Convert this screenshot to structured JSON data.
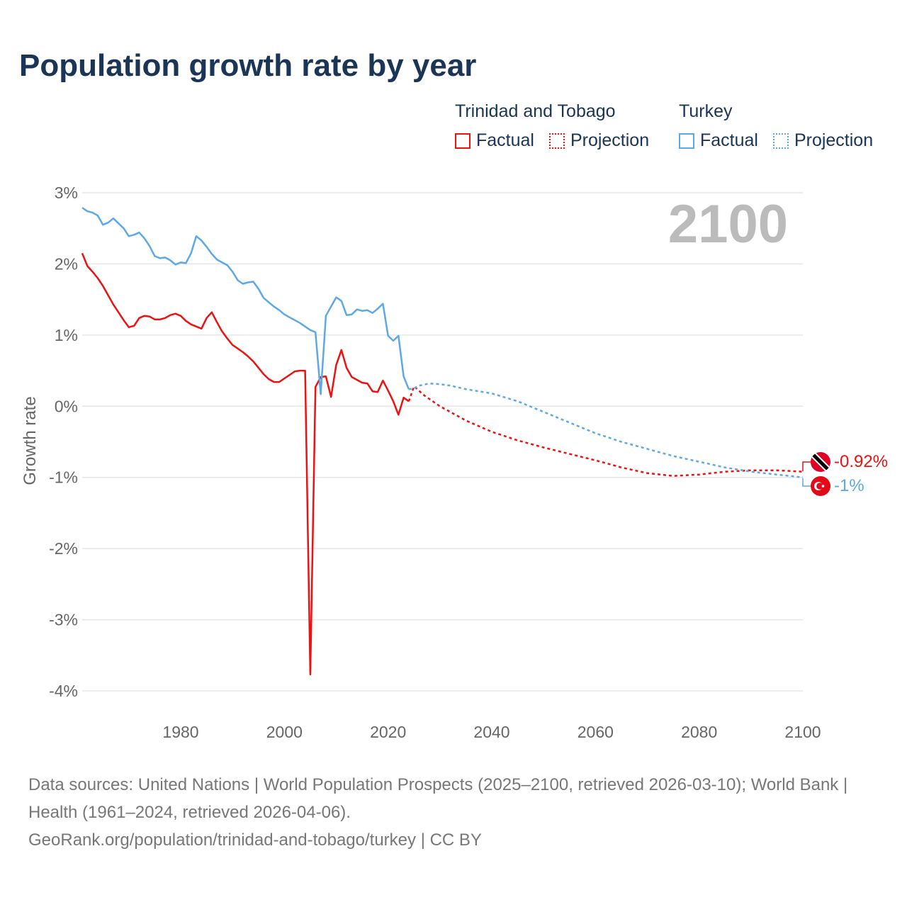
{
  "title": "Population growth rate by year",
  "legend": {
    "groups": [
      {
        "name": "Trinidad and Tobago",
        "color": "#ee1111",
        "factual_label": "Factual",
        "projection_label": "Projection"
      },
      {
        "name": "Turkey",
        "color": "#5da8e8",
        "factual_label": "Factual",
        "projection_label": "Projection"
      }
    ]
  },
  "year_watermark": "2100",
  "end_labels": {
    "tt": "-0.92%",
    "turkey": "-1%"
  },
  "footer": {
    "sources": "Data sources: United Nations | World Population Prospects (2025–2100, retrieved 2026-03-10); World Bank | Health (1961–2024, retrieved 2026-04-06).",
    "link": "GeoRank.org/population/trinidad-and-tobago/turkey | CC BY"
  },
  "chart_data": {
    "type": "line",
    "title": "Population growth rate by year",
    "xlabel": "",
    "ylabel": "Growth rate",
    "xlim": [
      1961,
      2100
    ],
    "ylim": [
      -4,
      3
    ],
    "x_ticks": [
      1980,
      2000,
      2020,
      2040,
      2060,
      2080,
      2100
    ],
    "y_ticks": [
      3,
      2,
      1,
      0,
      -1,
      -2,
      -3,
      -4
    ],
    "y_tick_labels": [
      "3%",
      "2%",
      "1%",
      "0%",
      "-1%",
      "-2%",
      "-3%",
      "-4%"
    ],
    "grid": true,
    "legend_position": "top-right",
    "series": [
      {
        "name": "Trinidad and Tobago – Factual",
        "color": "#ee1111",
        "dash": false,
        "x": [
          1961,
          1962,
          1963,
          1964,
          1965,
          1966,
          1967,
          1968,
          1969,
          1970,
          1971,
          1972,
          1973,
          1974,
          1975,
          1976,
          1977,
          1978,
          1979,
          1980,
          1981,
          1982,
          1983,
          1984,
          1985,
          1986,
          1987,
          1988,
          1989,
          1990,
          1991,
          1992,
          1993,
          1994,
          1995,
          1996,
          1997,
          1998,
          1999,
          2000,
          2001,
          2002,
          2003,
          2004,
          2005,
          2006,
          2007,
          2008,
          2009,
          2010,
          2011,
          2012,
          2013,
          2014,
          2015,
          2016,
          2017,
          2018,
          2019,
          2020,
          2021,
          2022,
          2023,
          2024
        ],
        "y": [
          2.15,
          1.97,
          1.89,
          1.8,
          1.69,
          1.56,
          1.43,
          1.32,
          1.21,
          1.11,
          1.13,
          1.24,
          1.27,
          1.26,
          1.22,
          1.22,
          1.24,
          1.28,
          1.3,
          1.27,
          1.2,
          1.15,
          1.12,
          1.09,
          1.24,
          1.32,
          1.18,
          1.05,
          0.95,
          0.86,
          0.81,
          0.76,
          0.7,
          0.63,
          0.54,
          0.45,
          0.38,
          0.34,
          0.34,
          0.39,
          0.44,
          0.49,
          0.5,
          0.5,
          -3.77,
          0.27,
          0.41,
          0.42,
          0.13,
          0.58,
          0.79,
          0.54,
          0.41,
          0.37,
          0.33,
          0.32,
          0.21,
          0.2,
          0.36,
          0.22,
          0.07,
          -0.12,
          0.12,
          0.07
        ]
      },
      {
        "name": "Trinidad and Tobago – Projection",
        "color": "#ee1111",
        "dash": true,
        "x": [
          2024,
          2025,
          2027,
          2030,
          2035,
          2040,
          2045,
          2050,
          2055,
          2060,
          2065,
          2070,
          2075,
          2080,
          2085,
          2090,
          2095,
          2100
        ],
        "y": [
          0.07,
          0.28,
          0.15,
          0.0,
          -0.2,
          -0.36,
          -0.48,
          -0.58,
          -0.67,
          -0.76,
          -0.86,
          -0.94,
          -0.98,
          -0.96,
          -0.92,
          -0.9,
          -0.9,
          -0.92
        ]
      },
      {
        "name": "Turkey – Factual",
        "color": "#5da8e8",
        "dash": false,
        "x": [
          1961,
          1962,
          1963,
          1964,
          1965,
          1966,
          1967,
          1968,
          1969,
          1970,
          1971,
          1972,
          1973,
          1974,
          1975,
          1976,
          1977,
          1978,
          1979,
          1980,
          1981,
          1982,
          1983,
          1984,
          1985,
          1986,
          1987,
          1988,
          1989,
          1990,
          1991,
          1992,
          1993,
          1994,
          1995,
          1996,
          1997,
          1998,
          1999,
          2000,
          2001,
          2002,
          2003,
          2004,
          2005,
          2006,
          2007,
          2008,
          2009,
          2010,
          2011,
          2012,
          2013,
          2014,
          2015,
          2016,
          2017,
          2018,
          2019,
          2020,
          2021,
          2022,
          2023,
          2024
        ],
        "y": [
          2.79,
          2.74,
          2.72,
          2.68,
          2.55,
          2.58,
          2.64,
          2.57,
          2.5,
          2.39,
          2.41,
          2.44,
          2.36,
          2.25,
          2.11,
          2.08,
          2.09,
          2.05,
          1.99,
          2.02,
          2.01,
          2.15,
          2.39,
          2.33,
          2.24,
          2.14,
          2.06,
          2.02,
          1.98,
          1.89,
          1.77,
          1.72,
          1.74,
          1.75,
          1.65,
          1.52,
          1.46,
          1.4,
          1.35,
          1.29,
          1.25,
          1.21,
          1.17,
          1.12,
          1.07,
          1.04,
          0.17,
          1.27,
          1.4,
          1.53,
          1.48,
          1.28,
          1.29,
          1.36,
          1.34,
          1.35,
          1.31,
          1.37,
          1.44,
          0.99,
          0.92,
          0.99,
          0.42,
          0.24
        ]
      },
      {
        "name": "Turkey – Projection",
        "color": "#5da8e8",
        "dash": true,
        "x": [
          2024,
          2025,
          2026,
          2028,
          2030,
          2032,
          2035,
          2040,
          2045,
          2050,
          2055,
          2060,
          2065,
          2070,
          2075,
          2080,
          2085,
          2090,
          2095,
          2100
        ],
        "y": [
          0.24,
          0.25,
          0.29,
          0.32,
          0.31,
          0.29,
          0.24,
          0.18,
          0.07,
          -0.08,
          -0.23,
          -0.38,
          -0.5,
          -0.6,
          -0.7,
          -0.78,
          -0.86,
          -0.92,
          -0.96,
          -1.0
        ]
      }
    ]
  }
}
